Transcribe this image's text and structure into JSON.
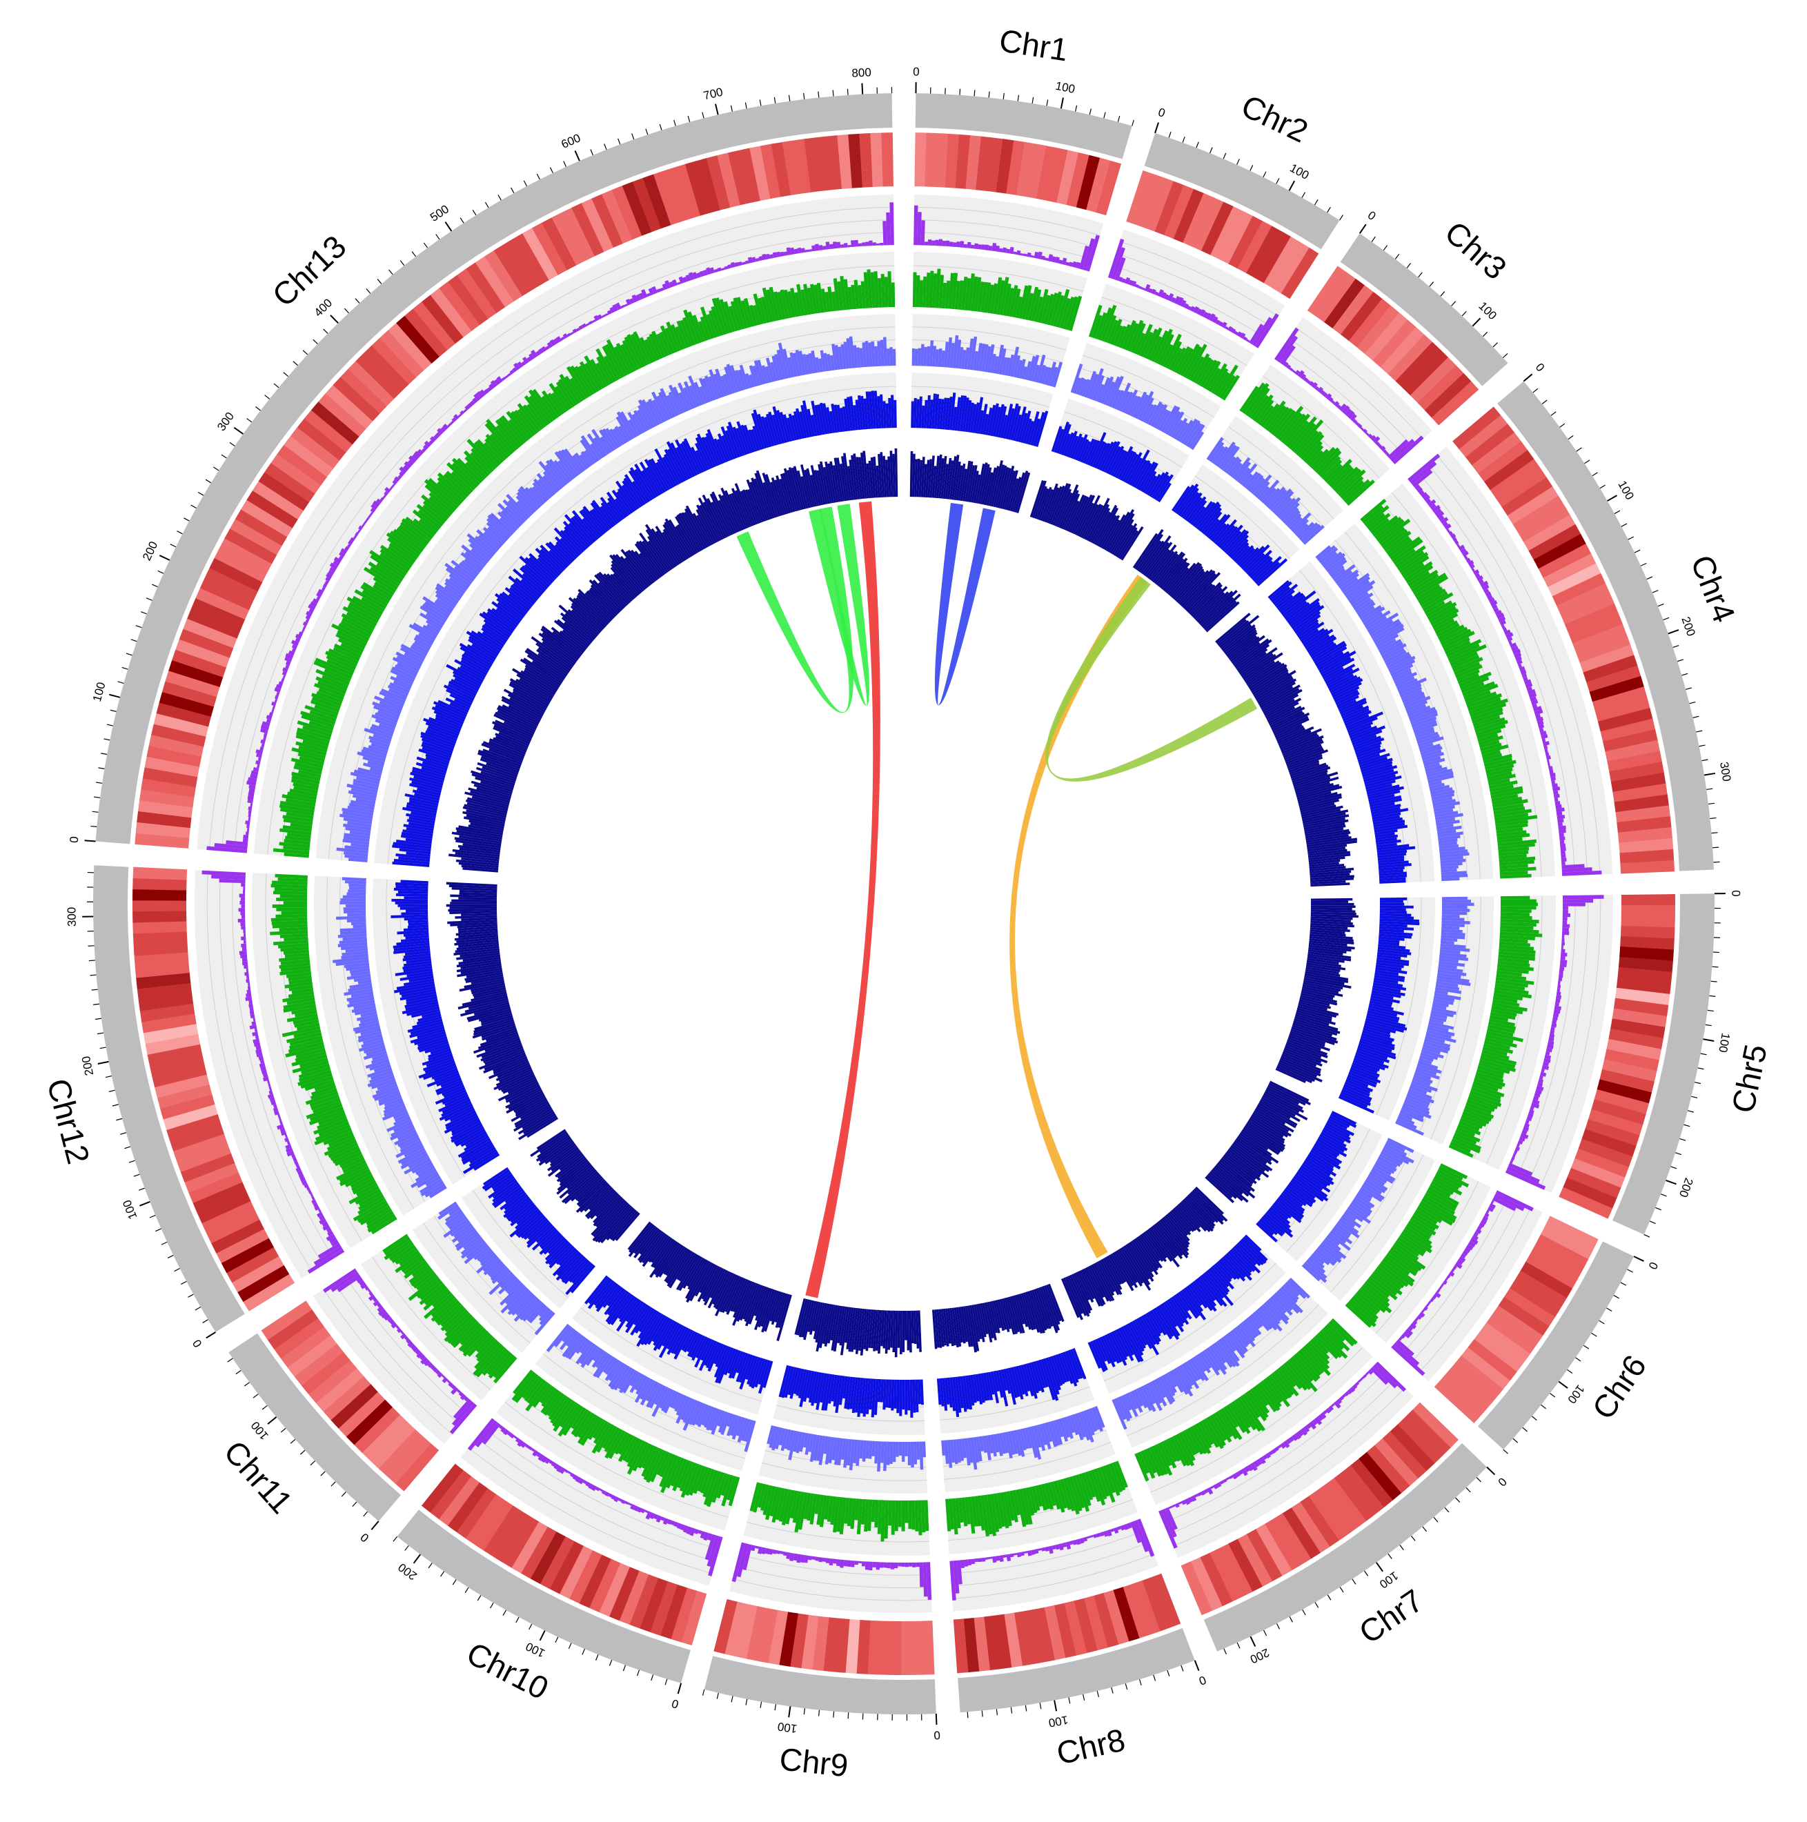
{
  "chart_data": {
    "type": "circos",
    "title": "",
    "chromosomes": [
      {
        "name": "Chr1",
        "length": 150,
        "ticks": [
          0,
          100
        ]
      },
      {
        "name": "Chr2",
        "length": 140,
        "ticks": [
          0,
          100
        ]
      },
      {
        "name": "Chr3",
        "length": 135,
        "ticks": [
          0,
          100
        ]
      },
      {
        "name": "Chr4",
        "length": 365,
        "ticks": [
          0,
          100,
          200,
          300
        ]
      },
      {
        "name": "Chr5",
        "length": 240,
        "ticks": [
          0,
          100,
          200
        ]
      },
      {
        "name": "Chr6",
        "length": 160,
        "ticks": [
          0,
          100
        ]
      },
      {
        "name": "Chr7",
        "length": 225,
        "ticks": [
          0,
          100,
          200
        ]
      },
      {
        "name": "Chr8",
        "length": 165,
        "ticks": [
          0,
          100
        ]
      },
      {
        "name": "Chr9",
        "length": 160,
        "ticks": [
          0,
          100
        ]
      },
      {
        "name": "Chr10",
        "length": 220,
        "ticks": [
          0,
          100,
          200
        ]
      },
      {
        "name": "Chr11",
        "length": 155,
        "ticks": [
          0,
          100
        ]
      },
      {
        "name": "Chr12",
        "length": 335,
        "ticks": [
          0,
          100,
          200,
          300
        ]
      },
      {
        "name": "Chr13",
        "length": 820,
        "ticks": [
          0,
          100,
          200,
          300,
          400,
          500,
          600,
          700,
          800
        ]
      }
    ],
    "tracks": [
      {
        "type": "heatmap",
        "color_low": "#fbb5b5",
        "color_high": "#8b0000"
      },
      {
        "type": "histogram",
        "color": "#9933ee",
        "background": "#efefef"
      },
      {
        "type": "histogram",
        "color": "#10b010",
        "background": "#efefef"
      },
      {
        "type": "histogram",
        "color": "#6a6aff",
        "background": "#efefef"
      },
      {
        "type": "histogram",
        "color": "#0c10e0",
        "background": "#efefef"
      },
      {
        "type": "histogram",
        "color": "#0a0a8a",
        "background": "#ffffff"
      }
    ],
    "links": [
      {
        "from": {
          "chr": "Chr13",
          "pos": 775
        },
        "to": {
          "chr": "Chr9",
          "pos": 150
        },
        "color": "#ee3333"
      },
      {
        "from": {
          "chr": "Chr13",
          "pos": 720
        },
        "to": {
          "chr": "Chr13",
          "pos": 600
        },
        "color": "#33ee44"
      },
      {
        "from": {
          "chr": "Chr13",
          "pos": 745
        },
        "to": {
          "chr": "Chr13",
          "pos": 705
        },
        "color": "#33ee44"
      },
      {
        "from": {
          "chr": "Chr1",
          "pos": 65
        },
        "to": {
          "chr": "Chr1",
          "pos": 110
        },
        "color": "#3344ee"
      },
      {
        "from": {
          "chr": "Chr3",
          "pos": 20
        },
        "to": {
          "chr": "Chr7",
          "pos": 160
        },
        "color": "#f6ae2d"
      },
      {
        "from": {
          "chr": "Chr3",
          "pos": 25
        },
        "to": {
          "chr": "Chr4",
          "pos": 100
        },
        "color": "#99cc44"
      }
    ]
  }
}
